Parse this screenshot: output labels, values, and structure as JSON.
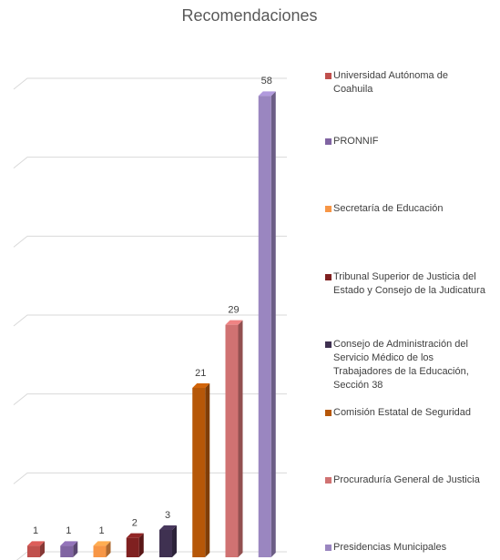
{
  "chart_data": {
    "type": "bar",
    "title": "Recomendaciones",
    "series": [
      {
        "name": "Universidad Autónoma de Coahuila",
        "color": "#c0504d",
        "values": [
          1
        ]
      },
      {
        "name": "PRONNIF",
        "color": "#8064a2",
        "values": [
          1
        ]
      },
      {
        "name": "Secretaría de Educación",
        "color": "#f79646",
        "values": [
          1
        ]
      },
      {
        "name": "Tribunal Superior de Justicia del Estado y Consejo de la Judicatura",
        "color": "#7f2020",
        "values": [
          2
        ]
      },
      {
        "name": "Consejo de Administración del Servicio Médico de los Trabajadores de la Educación, Sección 38",
        "color": "#3f3151",
        "values": [
          3
        ]
      },
      {
        "name": "Comisión Estatal de Seguridad",
        "color": "#b65708",
        "values": [
          21
        ]
      },
      {
        "name": "Procuraduría General de Justicia",
        "color": "#d07272",
        "values": [
          29
        ]
      },
      {
        "name": "Presidencias Municipales",
        "color": "#9a86c0",
        "values": [
          58
        ]
      }
    ],
    "ylim": [
      0,
      60
    ],
    "yticks": [
      0,
      10,
      20,
      30,
      40,
      50,
      60
    ],
    "grid": true,
    "legend": "right"
  }
}
